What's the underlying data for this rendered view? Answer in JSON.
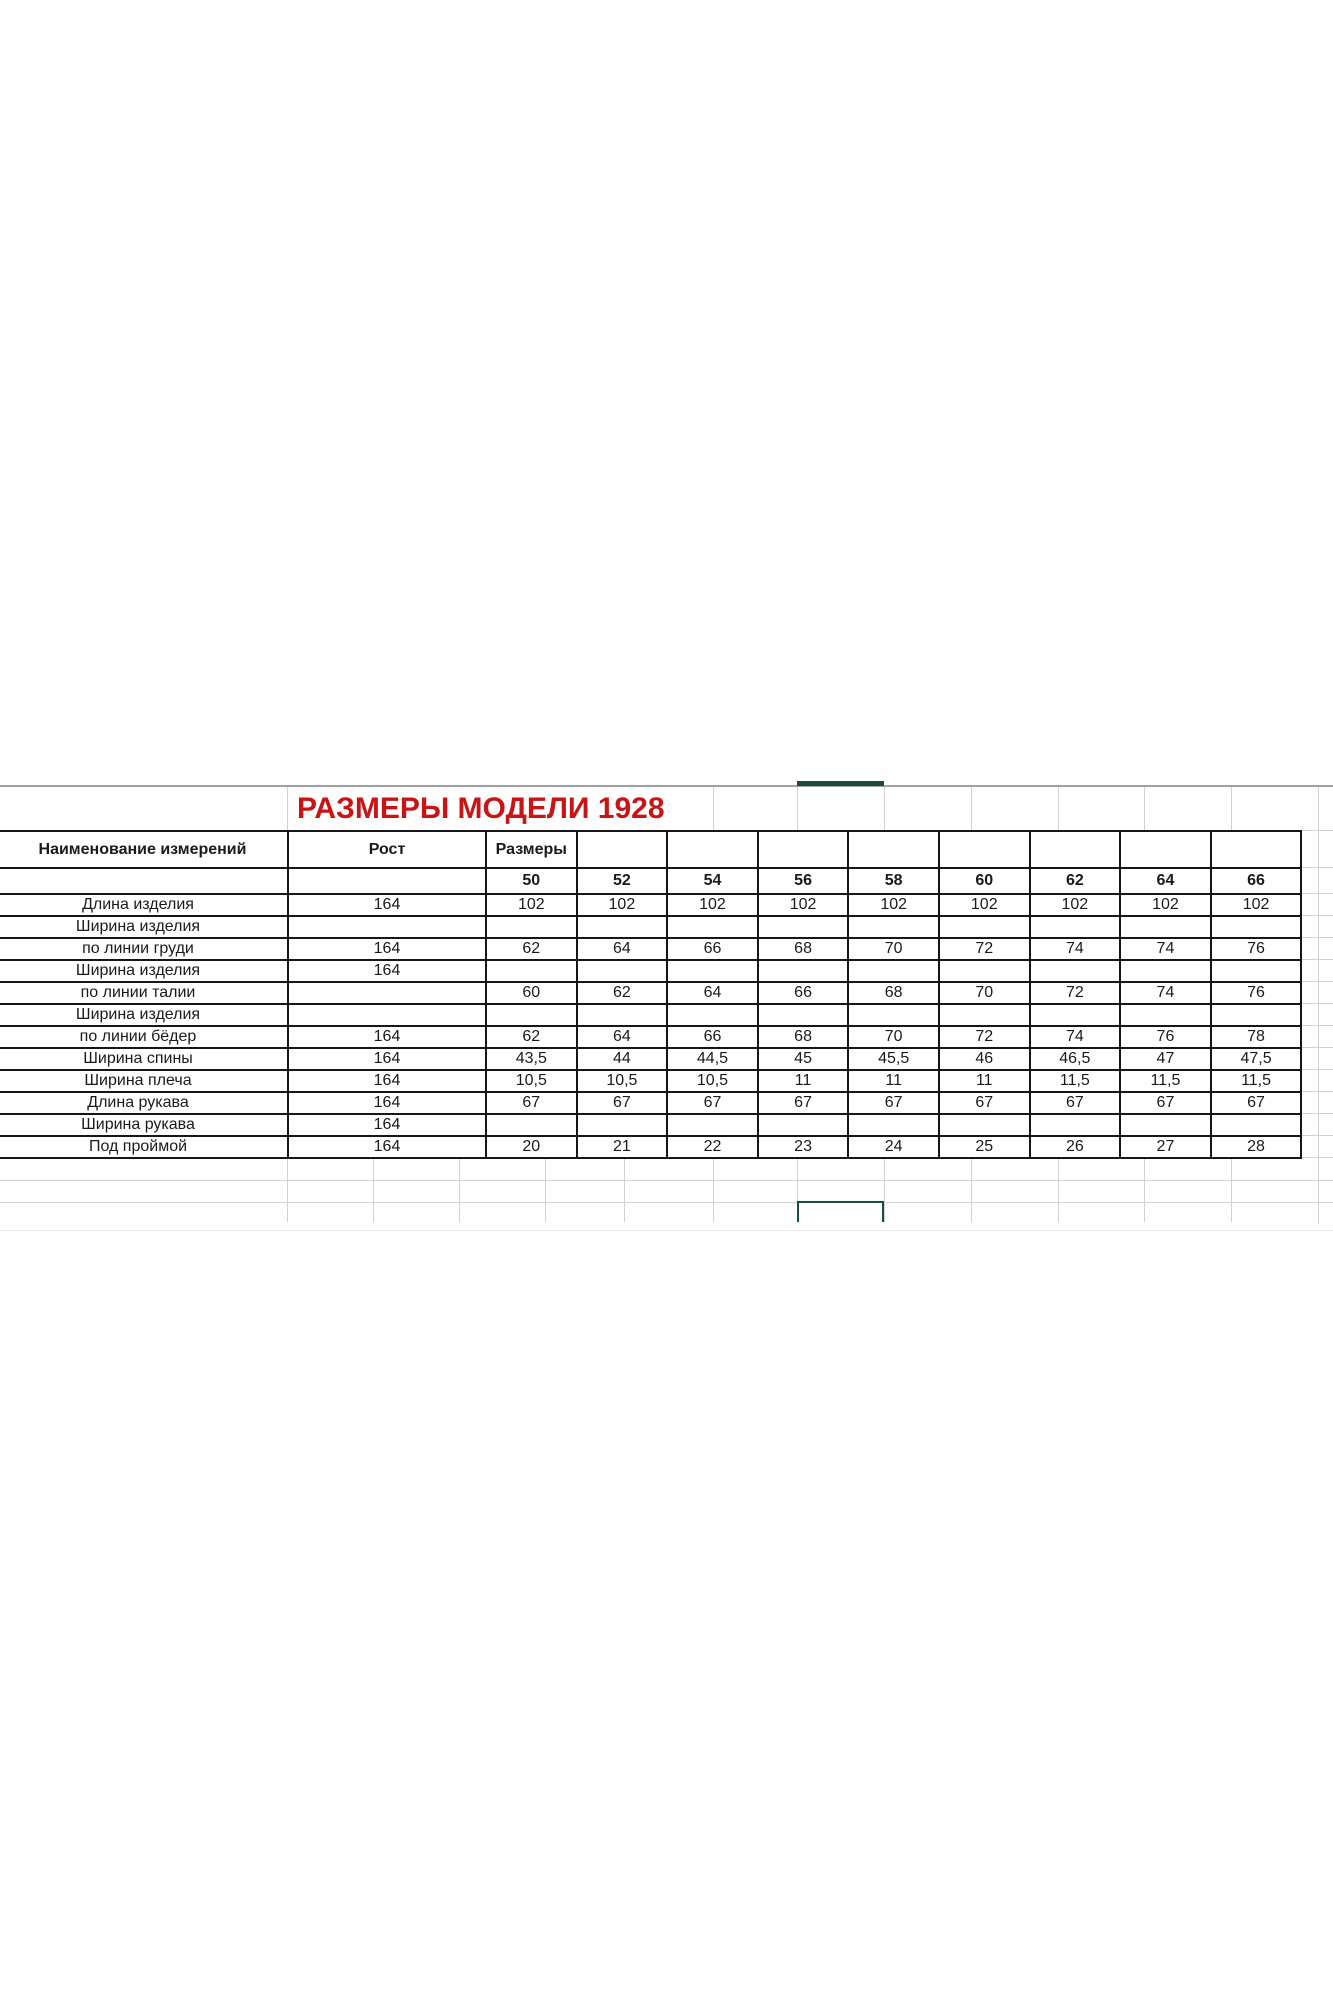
{
  "title": "РАЗМЕРЫ МОДЕЛИ 1928",
  "table": {
    "header": {
      "name_col": "Наименование измерений",
      "rost_col": "Рост",
      "sizes_col": "Размеры"
    },
    "size_columns": [
      "50",
      "52",
      "54",
      "56",
      "58",
      "60",
      "62",
      "64",
      "66"
    ],
    "rows": [
      {
        "label": "Длина изделия",
        "rost": "164",
        "values": [
          "102",
          "102",
          "102",
          "102",
          "102",
          "102",
          "102",
          "102",
          "102"
        ]
      },
      {
        "label": "Ширина изделия",
        "rost": "",
        "values": [
          "",
          "",
          "",
          "",
          "",
          "",
          "",
          "",
          ""
        ]
      },
      {
        "label": "по линии груди",
        "rost": "164",
        "values": [
          "62",
          "64",
          "66",
          "68",
          "70",
          "72",
          "74",
          "74",
          "76"
        ]
      },
      {
        "label": "Ширина изделия",
        "rost": "164",
        "values": [
          "",
          "",
          "",
          "",
          "",
          "",
          "",
          "",
          ""
        ]
      },
      {
        "label": "по линии талии",
        "rost": "",
        "values": [
          "60",
          "62",
          "64",
          "66",
          "68",
          "70",
          "72",
          "74",
          "76"
        ]
      },
      {
        "label": "Ширина изделия",
        "rost": "",
        "values": [
          "",
          "",
          "",
          "",
          "",
          "",
          "",
          "",
          ""
        ]
      },
      {
        "label": "по линии бёдер",
        "rost": "164",
        "values": [
          "62",
          "64",
          "66",
          "68",
          "70",
          "72",
          "74",
          "76",
          "78"
        ]
      },
      {
        "label": "Ширина спины",
        "rost": "164",
        "values": [
          "43,5",
          "44",
          "44,5",
          "45",
          "45,5",
          "46",
          "46,5",
          "47",
          "47,5"
        ]
      },
      {
        "label": "Ширина плеча",
        "rost": "164",
        "values": [
          "10,5",
          "10,5",
          "10,5",
          "11",
          "11",
          "11",
          "11,5",
          "11,5",
          "11,5"
        ]
      },
      {
        "label": "Длина рукава",
        "rost": "164",
        "values": [
          "67",
          "67",
          "67",
          "67",
          "67",
          "67",
          "67",
          "67",
          "67"
        ]
      },
      {
        "label": "Ширина рукава",
        "rost": "164",
        "values": [
          "",
          "",
          "",
          "",
          "",
          "",
          "",
          "",
          ""
        ]
      },
      {
        "label": "Под проймой",
        "rost": "164",
        "values": [
          "20",
          "21",
          "22",
          "23",
          "24",
          "25",
          "26",
          "27",
          "28"
        ]
      }
    ]
  },
  "colors": {
    "title_red": "#c81414",
    "table_border": "#161616",
    "gridline": "#d2d2d2",
    "selection_green": "#1b4d38"
  }
}
